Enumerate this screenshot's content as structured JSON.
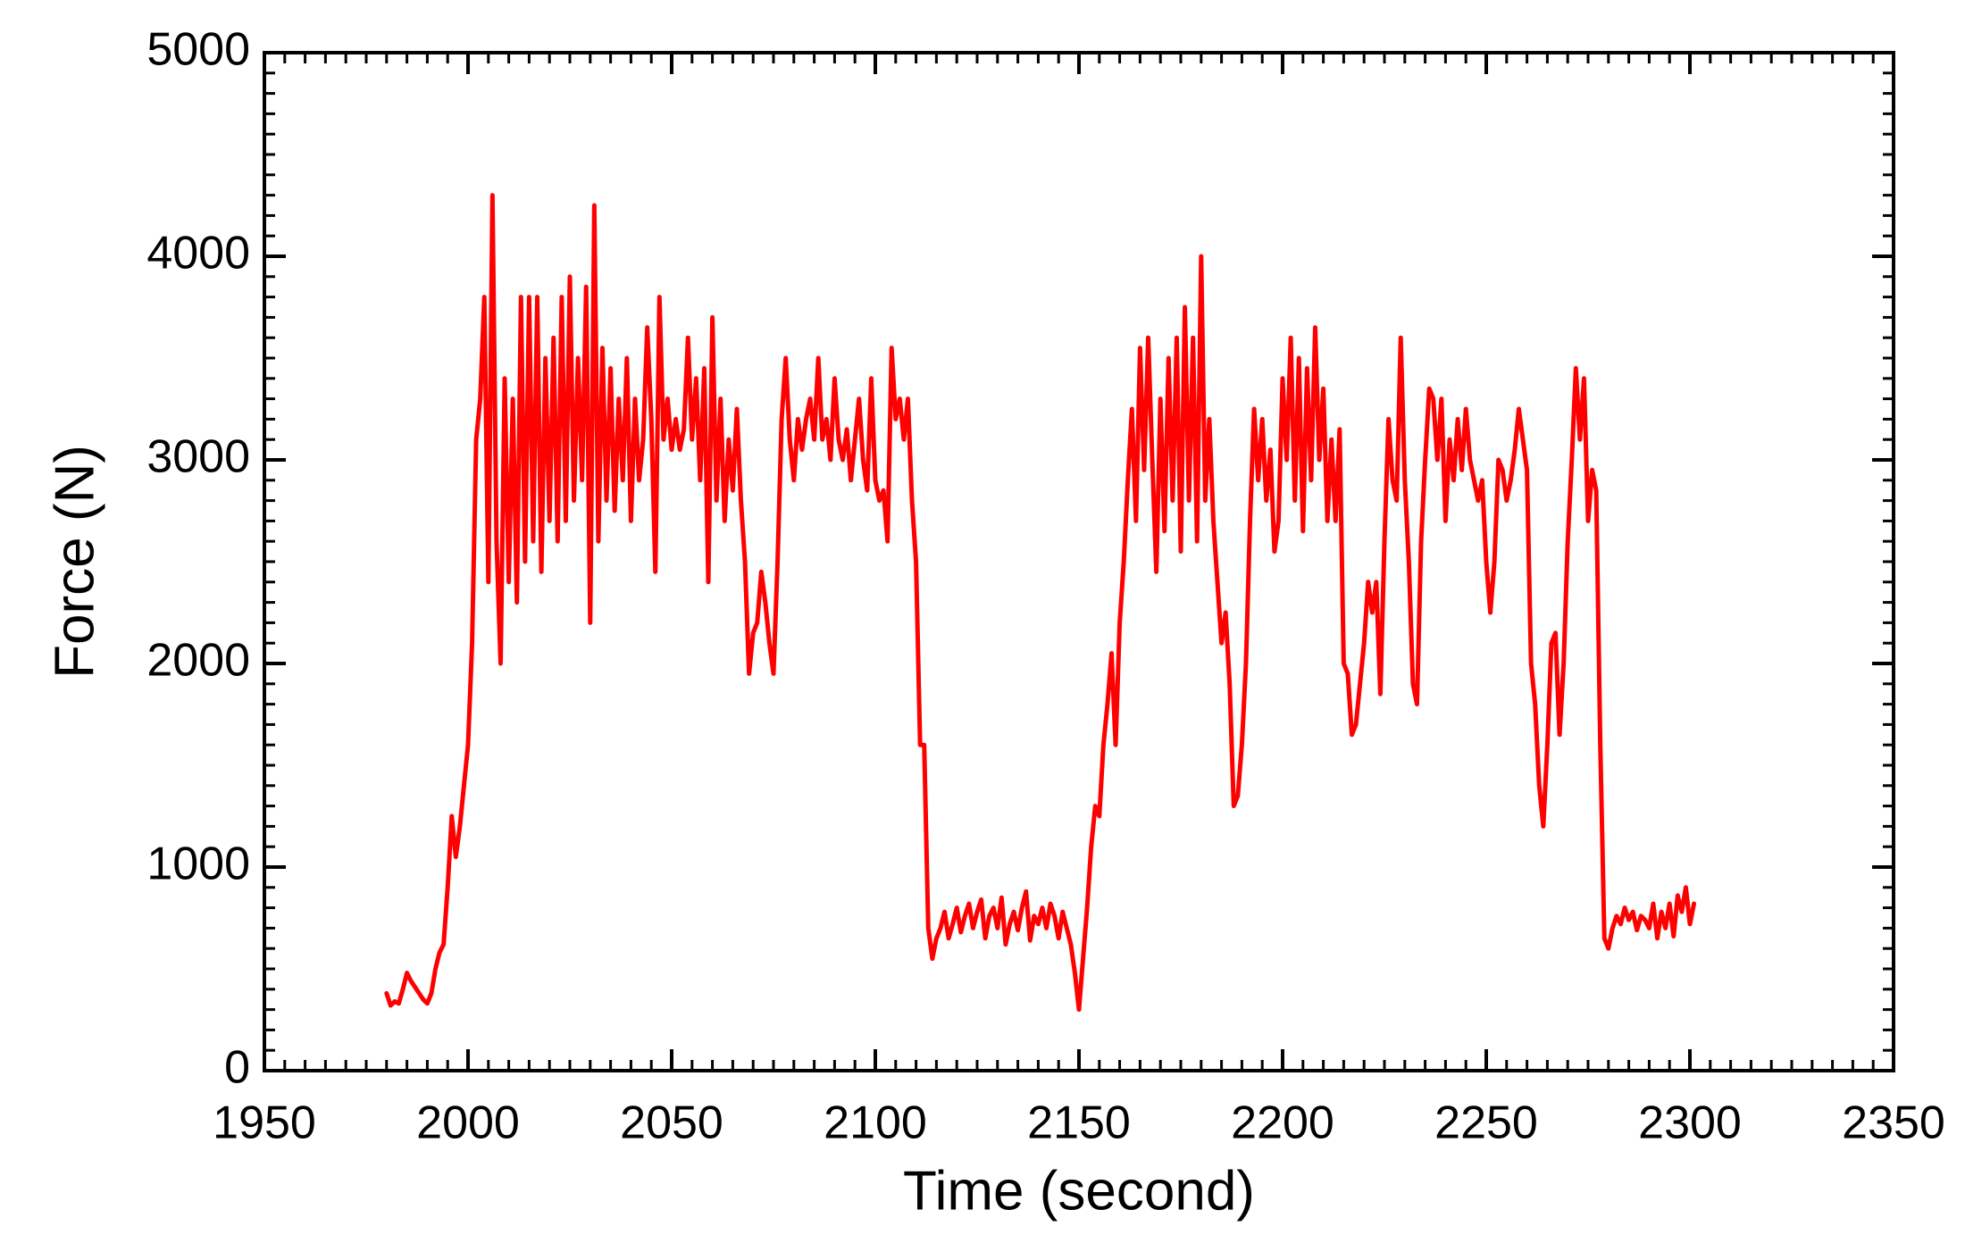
{
  "chart_data": {
    "type": "line",
    "xlabel": "Time (second)",
    "ylabel": "Force (N)",
    "xlim": [
      1950,
      2350
    ],
    "xticks": [
      1950,
      2000,
      2050,
      2100,
      2150,
      2200,
      2250,
      2300,
      2350
    ],
    "ylim": [
      0,
      5000
    ],
    "yticks": [
      0,
      1000,
      2000,
      3000,
      4000,
      5000
    ],
    "color": "#ff0000",
    "grid": false,
    "x": [
      1980,
      1981,
      1982,
      1983,
      1984,
      1985,
      1986,
      1987,
      1988,
      1989,
      1990,
      1991,
      1992,
      1993,
      1994,
      1995,
      1996,
      1997,
      1998,
      1999,
      2000,
      2001,
      2002,
      2003,
      2004,
      2005,
      2006,
      2007,
      2008,
      2009,
      2010,
      2011,
      2012,
      2013,
      2014,
      2015,
      2016,
      2017,
      2018,
      2019,
      2020,
      2021,
      2022,
      2023,
      2024,
      2025,
      2026,
      2027,
      2028,
      2029,
      2030,
      2031,
      2032,
      2033,
      2034,
      2035,
      2036,
      2037,
      2038,
      2039,
      2040,
      2041,
      2042,
      2043,
      2044,
      2045,
      2046,
      2047,
      2048,
      2049,
      2050,
      2051,
      2052,
      2053,
      2054,
      2055,
      2056,
      2057,
      2058,
      2059,
      2060,
      2061,
      2062,
      2063,
      2064,
      2065,
      2066,
      2067,
      2068,
      2069,
      2070,
      2071,
      2072,
      2073,
      2074,
      2075,
      2076,
      2077,
      2078,
      2079,
      2080,
      2081,
      2082,
      2083,
      2084,
      2085,
      2086,
      2087,
      2088,
      2089,
      2090,
      2091,
      2092,
      2093,
      2094,
      2095,
      2096,
      2097,
      2098,
      2099,
      2100,
      2101,
      2102,
      2103,
      2104,
      2105,
      2106,
      2107,
      2108,
      2109,
      2110,
      2111,
      2112,
      2113,
      2114,
      2115,
      2116,
      2117,
      2118,
      2119,
      2120,
      2121,
      2122,
      2123,
      2124,
      2125,
      2126,
      2127,
      2128,
      2129,
      2130,
      2131,
      2132,
      2133,
      2134,
      2135,
      2136,
      2137,
      2138,
      2139,
      2140,
      2141,
      2142,
      2143,
      2144,
      2145,
      2146,
      2147,
      2148,
      2149,
      2150,
      2151,
      2152,
      2153,
      2154,
      2155,
      2156,
      2157,
      2158,
      2159,
      2160,
      2161,
      2162,
      2163,
      2164,
      2165,
      2166,
      2167,
      2168,
      2169,
      2170,
      2171,
      2172,
      2173,
      2174,
      2175,
      2176,
      2177,
      2178,
      2179,
      2180,
      2181,
      2182,
      2183,
      2184,
      2185,
      2186,
      2187,
      2188,
      2189,
      2190,
      2191,
      2192,
      2193,
      2194,
      2195,
      2196,
      2197,
      2198,
      2199,
      2200,
      2201,
      2202,
      2203,
      2204,
      2205,
      2206,
      2207,
      2208,
      2209,
      2210,
      2211,
      2212,
      2213,
      2214,
      2215,
      2216,
      2217,
      2218,
      2219,
      2220,
      2221,
      2222,
      2223,
      2224,
      2225,
      2226,
      2227,
      2228,
      2229,
      2230,
      2231,
      2232,
      2233,
      2234,
      2235,
      2236,
      2237,
      2238,
      2239,
      2240,
      2241,
      2242,
      2243,
      2244,
      2245,
      2246,
      2247,
      2248,
      2249,
      2250,
      2251,
      2252,
      2253,
      2254,
      2255,
      2256,
      2257,
      2258,
      2259,
      2260,
      2261,
      2262,
      2263,
      2264,
      2265,
      2266,
      2267,
      2268,
      2269,
      2270,
      2271,
      2272,
      2273,
      2274,
      2275,
      2276,
      2277,
      2278,
      2279,
      2280,
      2281,
      2282,
      2283,
      2284,
      2285,
      2286,
      2287,
      2288,
      2289,
      2290,
      2291,
      2292,
      2293,
      2294,
      2295,
      2296,
      2297,
      2298,
      2299,
      2300,
      2301
    ],
    "values": [
      380,
      320,
      340,
      330,
      400,
      480,
      440,
      410,
      380,
      350,
      330,
      380,
      500,
      580,
      620,
      900,
      1250,
      1050,
      1200,
      1400,
      1600,
      2100,
      3100,
      3300,
      3800,
      2400,
      4300,
      2600,
      2000,
      3400,
      2400,
      3300,
      2300,
      3800,
      2500,
      3800,
      2600,
      3800,
      2450,
      3500,
      2700,
      3600,
      2600,
      3800,
      2700,
      3900,
      2800,
      3500,
      2900,
      3850,
      2200,
      4250,
      2600,
      3550,
      2800,
      3450,
      2750,
      3300,
      2900,
      3500,
      2700,
      3300,
      2900,
      3100,
      3650,
      3200,
      2450,
      3800,
      3100,
      3300,
      3050,
      3200,
      3050,
      3150,
      3600,
      3100,
      3400,
      2900,
      3450,
      2400,
      3700,
      2800,
      3300,
      2700,
      3100,
      2850,
      3250,
      2800,
      2500,
      1950,
      2150,
      2200,
      2450,
      2300,
      2100,
      1950,
      2500,
      3200,
      3500,
      3100,
      2900,
      3200,
      3050,
      3200,
      3300,
      3100,
      3500,
      3100,
      3200,
      3000,
      3400,
      3100,
      3000,
      3150,
      2900,
      3100,
      3300,
      3000,
      2850,
      3400,
      2900,
      2800,
      2850,
      2600,
      3550,
      3200,
      3300,
      3100,
      3300,
      2800,
      2500,
      1600,
      1600,
      700,
      550,
      650,
      700,
      780,
      650,
      720,
      800,
      680,
      760,
      820,
      700,
      780,
      840,
      650,
      760,
      800,
      700,
      850,
      620,
      720,
      780,
      690,
      800,
      880,
      640,
      760,
      720,
      800,
      700,
      820,
      760,
      650,
      780,
      700,
      620,
      480,
      300,
      550,
      800,
      1100,
      1300,
      1250,
      1600,
      1800,
      2050,
      1600,
      2200,
      2500,
      2900,
      3250,
      2700,
      3550,
      2950,
      3600,
      3000,
      2450,
      3300,
      2650,
      3500,
      2800,
      3600,
      2550,
      3750,
      2800,
      3600,
      2600,
      4000,
      2800,
      3200,
      2700,
      2400,
      2100,
      2250,
      1900,
      1300,
      1350,
      1600,
      2000,
      2700,
      3250,
      2900,
      3200,
      2800,
      3050,
      2550,
      2700,
      3400,
      3000,
      3600,
      2800,
      3500,
      2650,
      3450,
      2900,
      3650,
      3000,
      3350,
      2700,
      3100,
      2700,
      3150,
      2000,
      1950,
      1650,
      1700,
      1900,
      2100,
      2400,
      2250,
      2400,
      1850,
      2600,
      3200,
      2900,
      2800,
      3600,
      2900,
      2500,
      1900,
      1800,
      2600,
      3000,
      3350,
      3300,
      3000,
      3300,
      2700,
      3100,
      2900,
      3200,
      2950,
      3250,
      3000,
      2900,
      2800,
      2900,
      2500,
      2250,
      2500,
      3000,
      2950,
      2800,
      2900,
      3050,
      3250,
      3100,
      2950,
      2000,
      1800,
      1400,
      1200,
      1600,
      2100,
      2150,
      1650,
      2000,
      2600,
      3000,
      3450,
      3100,
      3400,
      2700,
      2950,
      2850,
      1600,
      650,
      600,
      700,
      760,
      720,
      800,
      740,
      780,
      690,
      760,
      740,
      700,
      820,
      650,
      780,
      700,
      820,
      660,
      860,
      780,
      900,
      720,
      820
    ]
  }
}
